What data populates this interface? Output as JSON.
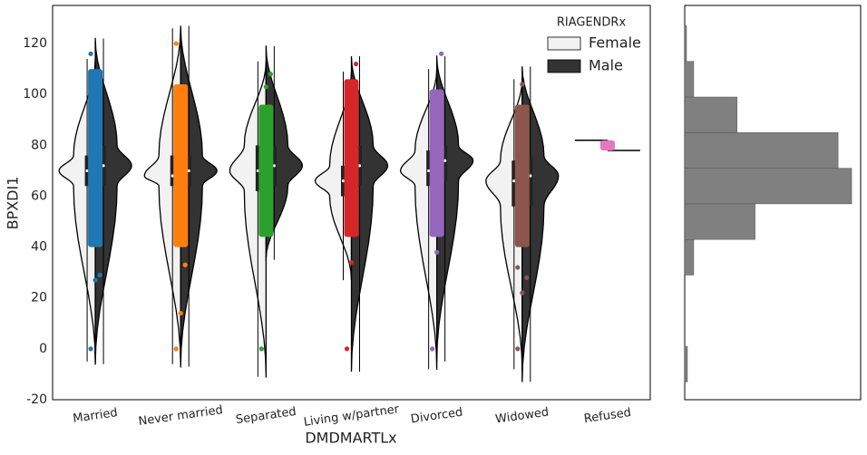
{
  "chart_data": [
    {
      "type": "violin",
      "x_label": "DMDMARTLx",
      "y_label": "BPXDI1",
      "legend_title": "RIAGENDRx",
      "legend": "upper right",
      "categories": [
        "Married",
        "Never married",
        "Separated",
        "Living w/partner",
        "Divorced",
        "Widowed",
        "Refused"
      ],
      "ylim": [
        -20,
        135
      ],
      "yticks": [
        -20,
        0,
        20,
        40,
        60,
        80,
        100,
        120
      ],
      "series": [
        {
          "name": "Female",
          "color": "#f2f2f2",
          "values": [
            [
              -5,
              64,
              70,
              76,
              114
            ],
            [
              -6,
              64,
              68,
              76,
              126
            ],
            [
              -11,
              62,
              70,
              80,
              113
            ],
            [
              27,
              60,
              66,
              72,
              109
            ],
            [
              -8,
              64,
              70,
              78,
              110
            ],
            [
              -8,
              56,
              66,
              74,
              106
            ],
            [
              82,
              82,
              82,
              82,
              82
            ]
          ]
        },
        {
          "name": "Male",
          "color": "#333333",
          "values": [
            [
              -6,
              64,
              72,
              80,
              122
            ],
            [
              -7,
              64,
              70,
              76,
              127
            ],
            [
              35,
              64,
              72,
              80,
              119
            ],
            [
              -9,
              64,
              72,
              80,
              115
            ],
            [
              -5,
              66,
              74,
              80,
              115
            ],
            [
              -13,
              56,
              68,
              76,
              111
            ],
            [
              78,
              78,
              78,
              78,
              78
            ]
          ]
        }
      ],
      "strip": {
        "colors": [
          "#1f77b4",
          "#ff7f0e",
          "#2ca02c",
          "#d62728",
          "#9467bd",
          "#8c564b",
          "#e377c2"
        ],
        "ranges": [
          [
            40,
            110
          ],
          [
            40,
            104
          ],
          [
            44,
            96
          ],
          [
            44,
            106
          ],
          [
            44,
            102
          ],
          [
            40,
            96
          ],
          [
            78,
            82
          ]
        ],
        "outliers": [
          [
            0,
            27,
            29,
            116
          ],
          [
            0,
            14,
            33,
            120
          ],
          [
            0,
            103,
            108
          ],
          [
            0,
            34,
            112
          ],
          [
            0,
            38,
            116
          ],
          [
            0,
            22,
            28,
            32,
            104
          ],
          []
        ]
      }
    },
    {
      "type": "histogram",
      "orientation": "horizontal",
      "color": "#808080",
      "bins": [
        -13,
        1,
        15,
        29,
        43,
        57,
        71,
        85,
        99,
        113,
        127
      ],
      "values": [
        3,
        0,
        0,
        10,
        78,
        185,
        170,
        58,
        10,
        2
      ],
      "xlim": [
        0,
        195
      ],
      "ylim": [
        -20,
        135
      ]
    }
  ]
}
